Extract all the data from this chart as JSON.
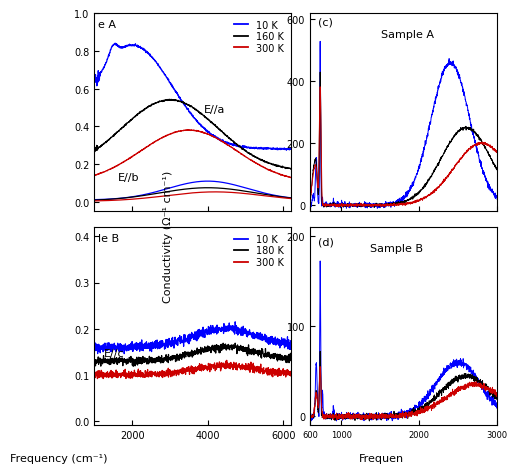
{
  "panel_a": {
    "label_top": "e A",
    "legend_temps": [
      "10 K",
      "160 K",
      "300 K"
    ],
    "legend_colors": [
      "#0000ff",
      "#000000",
      "#cc0000"
    ],
    "annotation_a": "E//a",
    "annotation_b": "E//b"
  },
  "panel_b": {
    "label_top": "le B",
    "legend_temps": [
      "10 K",
      "180 K",
      "300 K"
    ],
    "legend_colors": [
      "#0000ff",
      "#000000",
      "#cc0000"
    ],
    "annotation_c": "E//c"
  },
  "panel_c": {
    "title": "Sample A",
    "panel_label": "(c)",
    "ylim": [
      -20,
      620
    ],
    "yticks": [
      0,
      200,
      400,
      600
    ]
  },
  "panel_d": {
    "title": "Sample B",
    "panel_label": "(d)",
    "ylim": [
      -10,
      210
    ],
    "yticks": [
      0,
      100,
      200
    ]
  },
  "ylabel_cd": "Conductivity (Ω⁻¹ cm⁻¹)",
  "xlabel_ab": "Frequency (cm⁻¹)",
  "xlabel_cd": "Frequen",
  "colors": {
    "blue": "#0000ff",
    "black": "#000000",
    "red": "#cc0000"
  },
  "background": "#ffffff"
}
